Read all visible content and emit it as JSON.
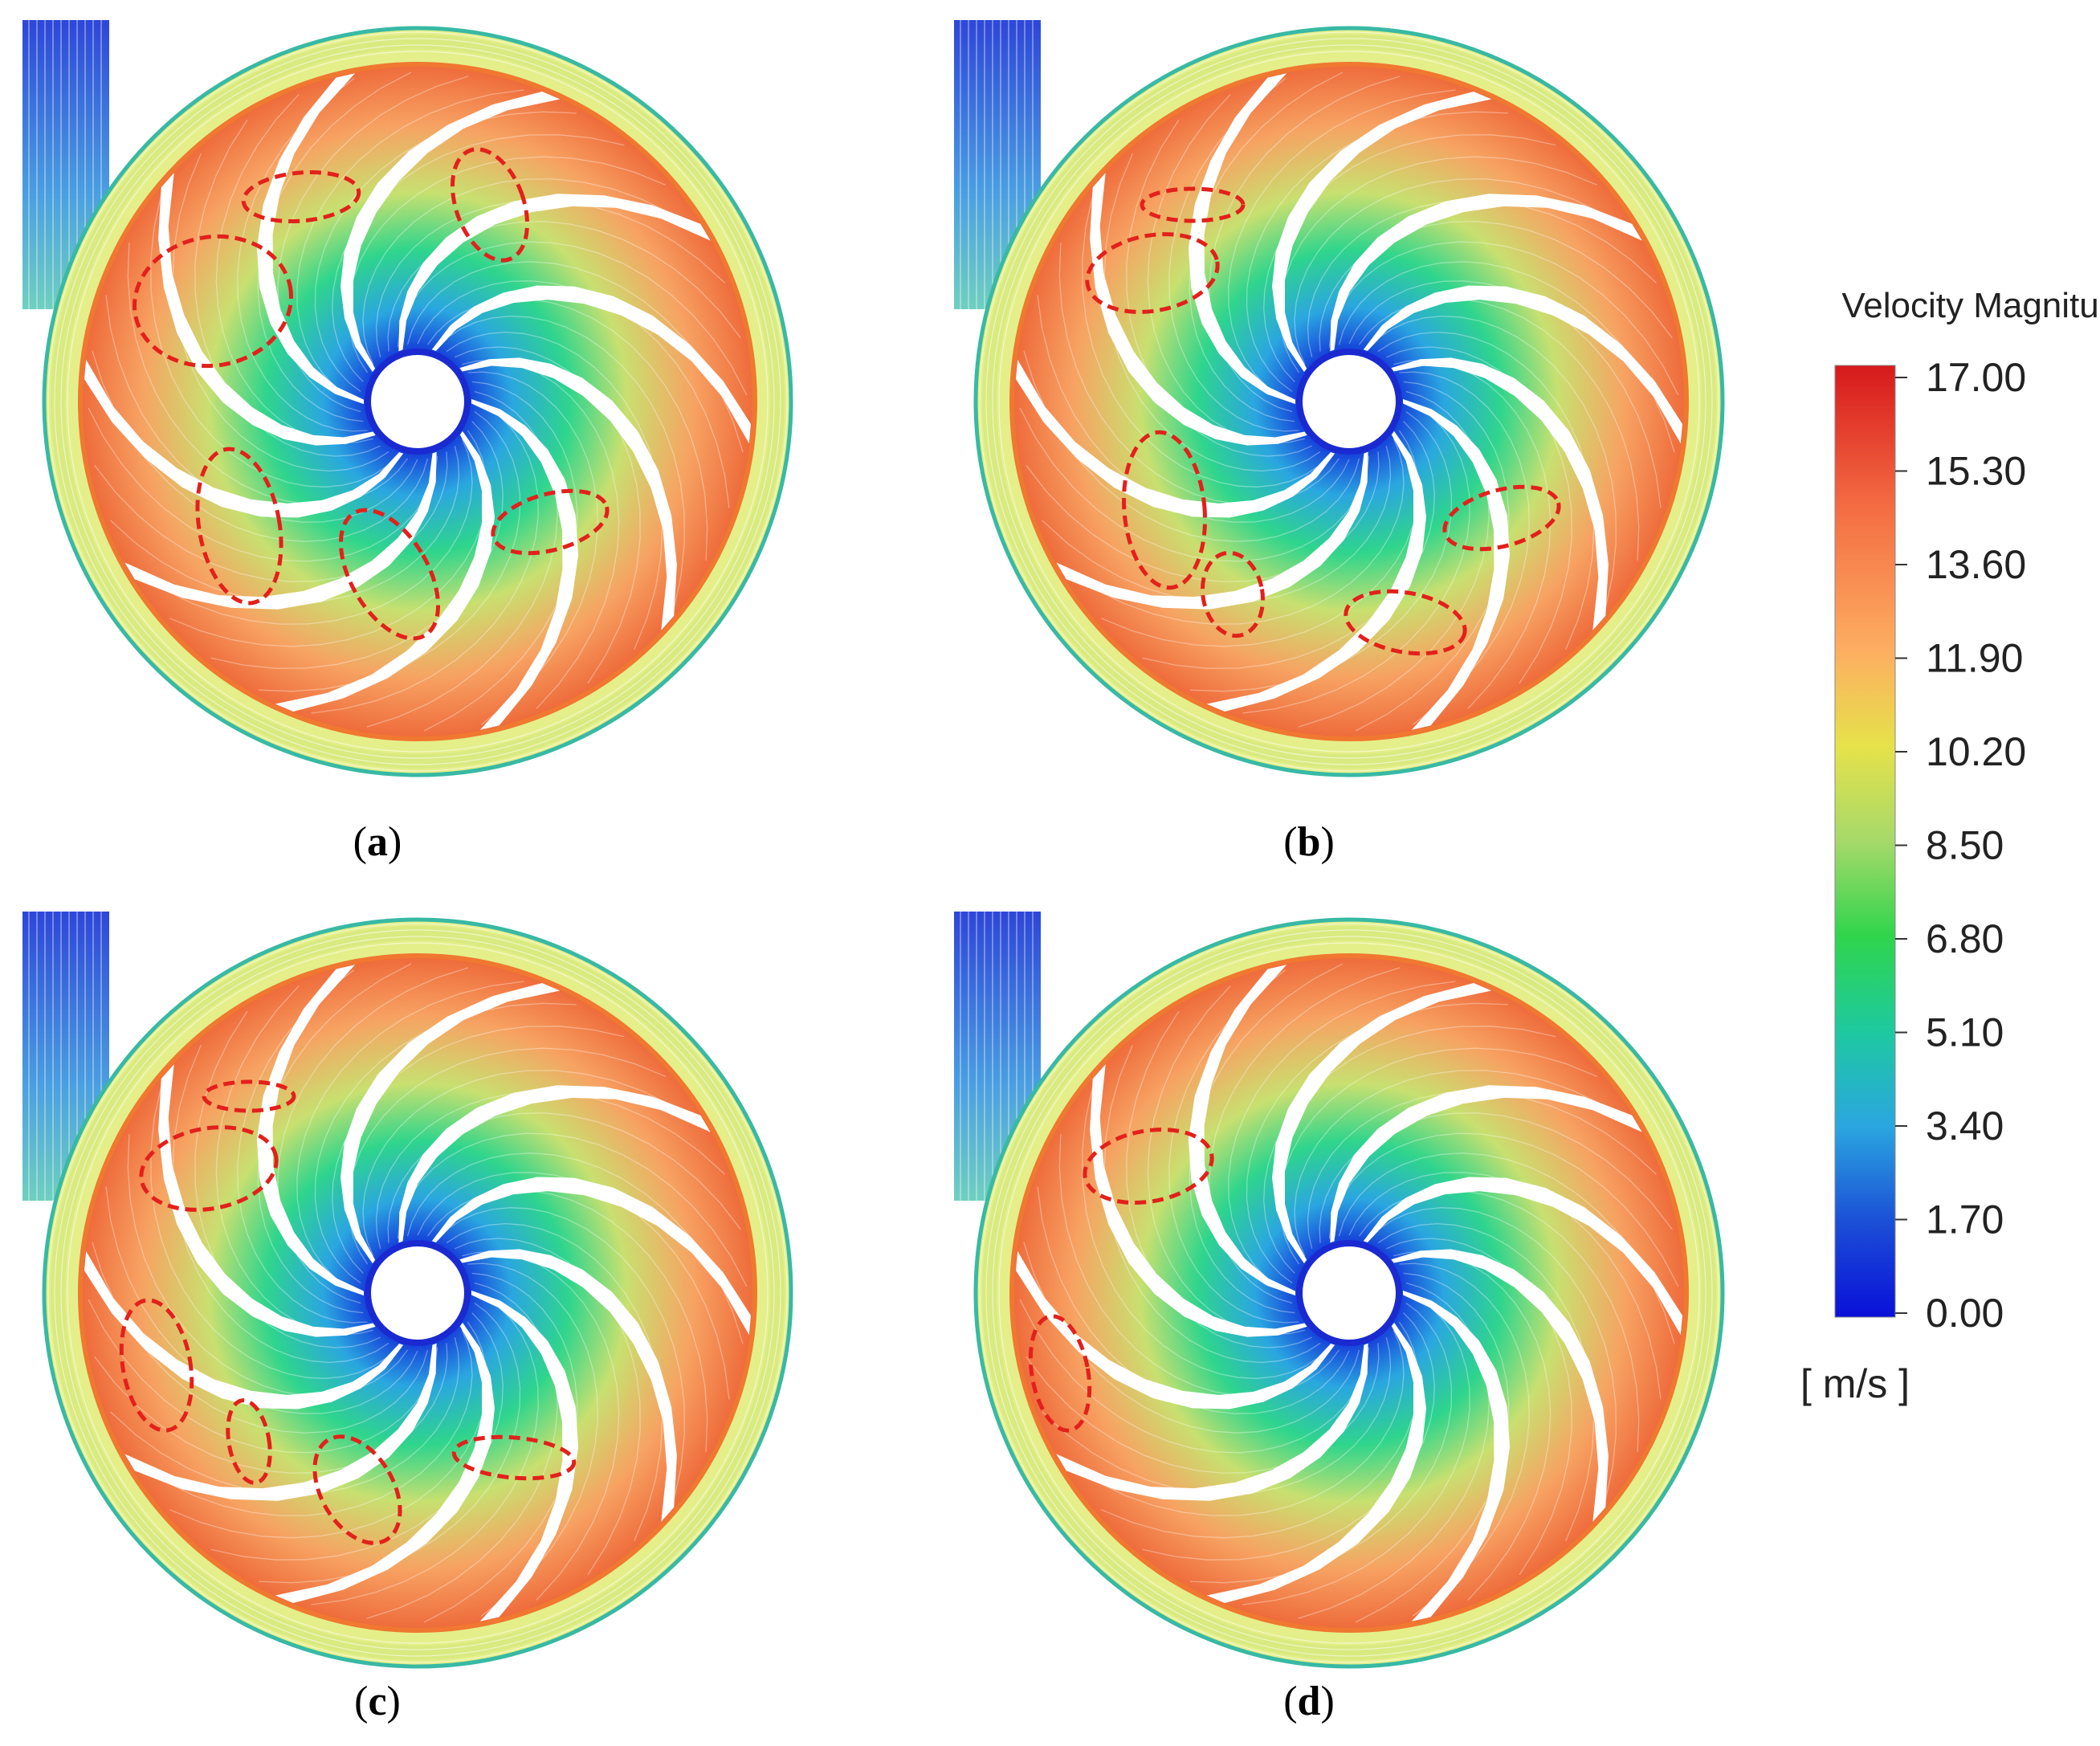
{
  "panels": [
    {
      "id": "a",
      "caption_open": "(",
      "caption_letter": "a",
      "caption_close": ")",
      "vortex_count": 6
    },
    {
      "id": "b",
      "caption_open": "(",
      "caption_letter": "b",
      "caption_close": ")",
      "vortex_count": 6
    },
    {
      "id": "c",
      "caption_open": "(",
      "caption_letter": "c",
      "caption_close": ")",
      "vortex_count": 6
    },
    {
      "id": "d",
      "caption_open": "(",
      "caption_letter": "d",
      "caption_close": ")",
      "vortex_count": 2
    }
  ],
  "colorbar": {
    "title": "Velocity Magnitude",
    "unit": "[ m/s ]",
    "min": 0,
    "max": 17,
    "ticks": [
      "17.00",
      "15.30",
      "13.60",
      "11.90",
      "10.20",
      "8.50",
      "6.80",
      "5.10",
      "3.40",
      "1.70",
      "0.00"
    ],
    "colors": [
      "#d7191c",
      "#f46d43",
      "#fdae61",
      "#e6e24a",
      "#a6d96a",
      "#2fd54c",
      "#1ec9a0",
      "#2aa6e0",
      "#1b4fd6",
      "#0a10d9"
    ]
  },
  "annotation_color": "#e3201b"
}
